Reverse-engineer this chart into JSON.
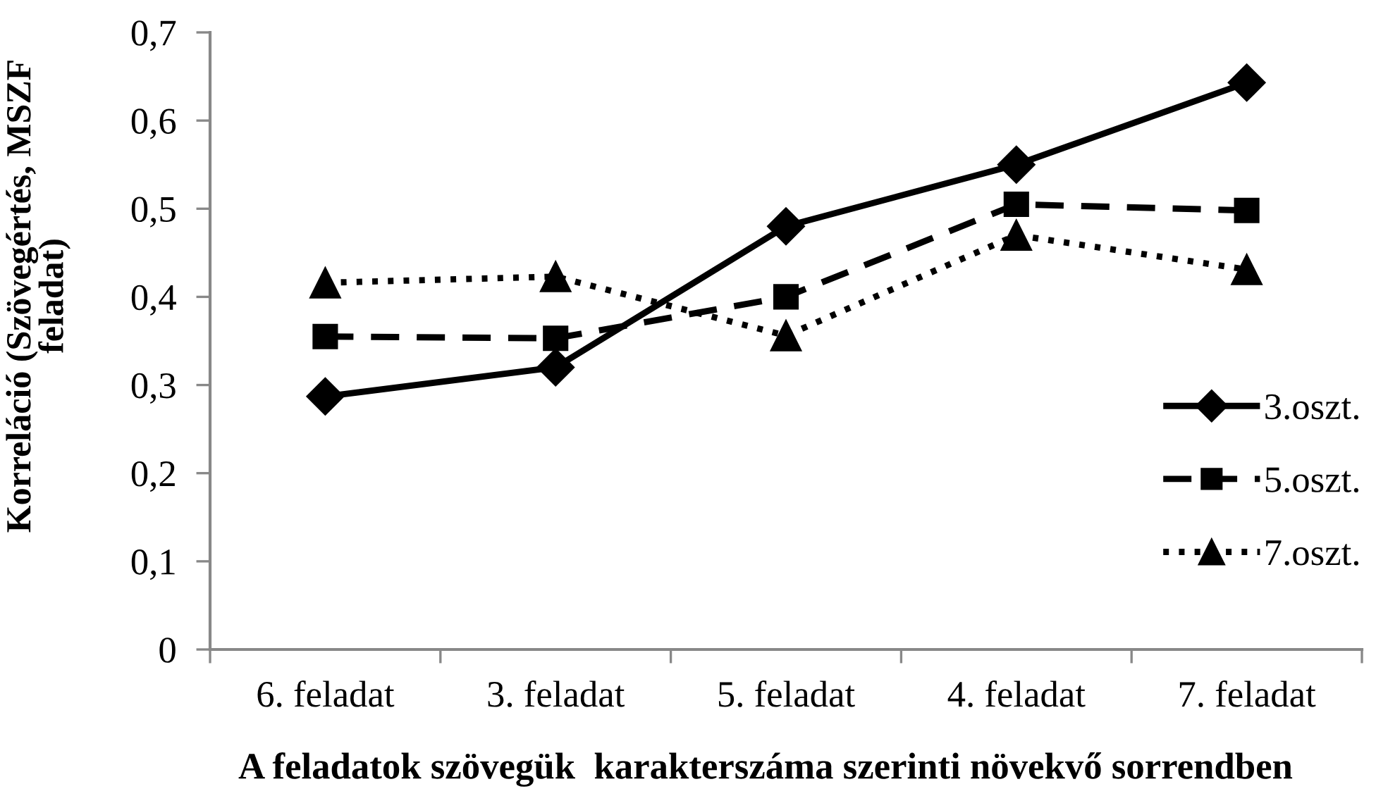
{
  "chart_data": {
    "type": "line",
    "xlabel": "A feladatok szövegük  karakterszáma szerinti növekvő sorrendben",
    "ylabel": "Korreláció (Szövegértés, MSZF\nfeladat)",
    "categories": [
      "6. feladat",
      "3. feladat",
      "5. feladat",
      "4. feladat",
      "7. feladat"
    ],
    "series": [
      {
        "name": "3.oszt.",
        "color": "#000000",
        "marker": "diamond",
        "line_style": "solid",
        "values": [
          0.287,
          0.32,
          0.48,
          0.55,
          0.643
        ]
      },
      {
        "name": "5.oszt.",
        "color": "#000000",
        "marker": "square",
        "line_style": "dashed",
        "values": [
          0.355,
          0.353,
          0.4,
          0.505,
          0.498
        ]
      },
      {
        "name": "7.oszt.",
        "color": "#000000",
        "marker": "triangle",
        "line_style": "dotted",
        "values": [
          0.416,
          0.423,
          0.356,
          0.47,
          0.431
        ]
      }
    ],
    "ylim": [
      0,
      0.7
    ],
    "yticks": [
      0,
      {
        "value": 0.1,
        "label": "0,1"
      },
      {
        "value": 0.2,
        "label": "0,2"
      },
      {
        "value": 0.3,
        "label": "0,3"
      },
      {
        "value": 0.4,
        "label": "0,4"
      },
      {
        "value": 0.5,
        "label": "0,5"
      },
      {
        "value": 0.6,
        "label": "0,6"
      },
      {
        "value": 0.7,
        "label": "0,7"
      }
    ],
    "legend": "right"
  }
}
